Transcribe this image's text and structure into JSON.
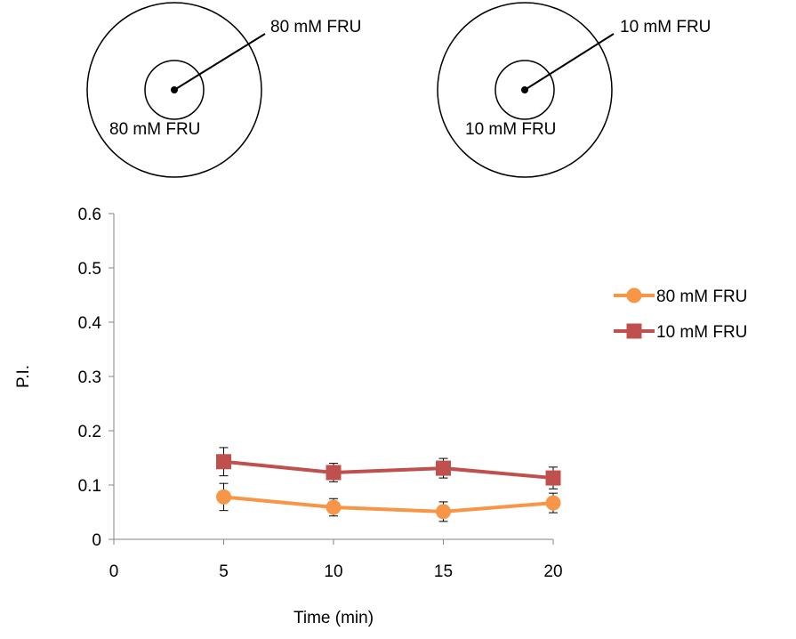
{
  "diagrams": [
    {
      "outer_label": "80 mM FRU",
      "inner_label": "80 mM FRU"
    },
    {
      "outer_label": "10 mM FRU",
      "inner_label": "10 mM FRU"
    }
  ],
  "chart_data": {
    "type": "line",
    "title": "",
    "xlabel": "Time (min)",
    "ylabel": "P.I.",
    "xlim": [
      0,
      20
    ],
    "ylim": [
      0,
      0.6
    ],
    "x_ticks": [
      "0",
      "5",
      "10",
      "15",
      "20"
    ],
    "y_ticks": [
      "0",
      "0.1",
      "0.2",
      "0.3",
      "0.4",
      "0.5",
      "0.6"
    ],
    "x": [
      5,
      10,
      15,
      20
    ],
    "series": [
      {
        "name": "80 mM FRU",
        "color": "#F79646",
        "marker": "circle",
        "values": [
          0.078,
          0.059,
          0.051,
          0.067
        ],
        "error": [
          0.025,
          0.016,
          0.018,
          0.018
        ]
      },
      {
        "name": "10 mM FRU",
        "color": "#C0504D",
        "marker": "square",
        "values": [
          0.143,
          0.123,
          0.131,
          0.113
        ],
        "error": [
          0.026,
          0.017,
          0.018,
          0.02
        ]
      }
    ],
    "legend": "right",
    "grid": false
  }
}
